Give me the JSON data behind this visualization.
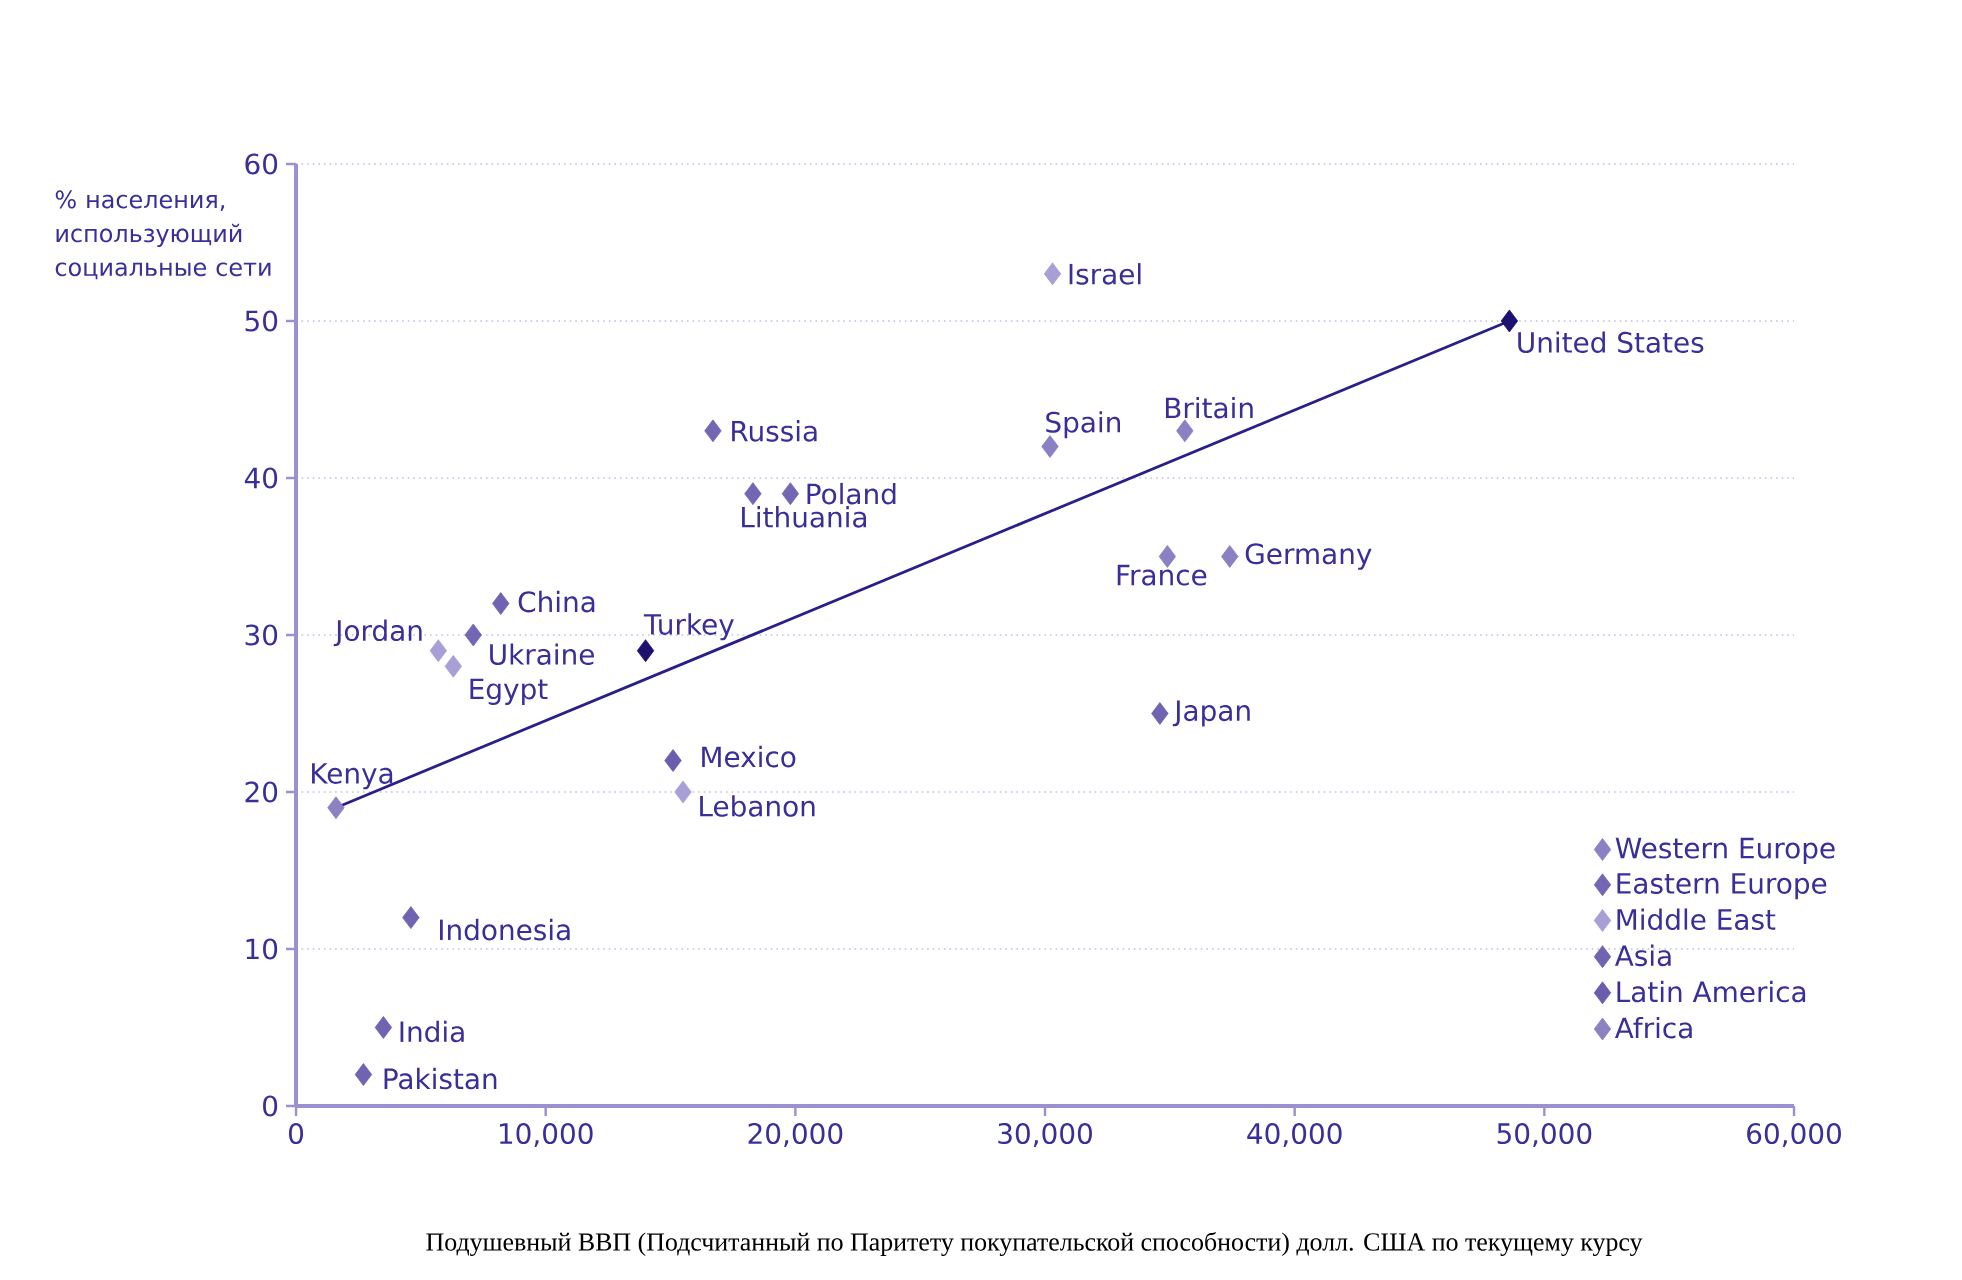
{
  "chart_data": {
    "type": "scatter",
    "xlabel": "Подушевный ВВП (Подсчитанный по Паритету покупательской способности) долл. США по текущему курсу",
    "ylabel": "% населения, использующий социальные сети",
    "xlim": [
      0,
      60000
    ],
    "ylim": [
      0,
      60
    ],
    "xticks": [
      0,
      {
        "value": 10000,
        "label": "10,000"
      },
      {
        "value": 20000,
        "label": "20,000"
      },
      {
        "value": 30000,
        "label": "30,000"
      },
      {
        "value": 40000,
        "label": "40,000"
      },
      {
        "value": 50000,
        "label": "50,000"
      },
      {
        "value": 60000,
        "label": "60,000"
      }
    ],
    "yticks": [
      0,
      10,
      20,
      30,
      40,
      50,
      60
    ],
    "grid": "y",
    "legend": "bottom right",
    "marker": "diamond",
    "series": [
      {
        "name": "Western Europe",
        "color": "#8a80c4",
        "x": [
          30200,
          35600,
          34900,
          37400
        ],
        "values": [
          42,
          43,
          35,
          35
        ]
      },
      {
        "name": "Eastern Europe",
        "color": "#7367b5",
        "x": [
          16700,
          18300,
          19800,
          7100
        ],
        "values": [
          43,
          39,
          39,
          30
        ]
      },
      {
        "name": "Middle East",
        "color": "#a89fd6",
        "x": [
          30300,
          5700,
          6300,
          15500
        ],
        "values": [
          53,
          29,
          28,
          20
        ]
      },
      {
        "name": "Asia",
        "color": "#6f63b2",
        "x": [
          8200,
          4600,
          3500,
          2700,
          34600
        ],
        "values": [
          32,
          12,
          5,
          2,
          25
        ]
      },
      {
        "name": "Latin America",
        "color": "#6a5dae",
        "x": [
          15100
        ],
        "values": [
          22
        ]
      },
      {
        "name": "Africa",
        "color": "#8c82c2",
        "x": [
          1600
        ],
        "values": [
          19
        ]
      },
      {
        "color": "#1c1070",
        "x": [
          14000,
          48600
        ],
        "values": [
          29,
          50
        ]
      },
      {
        "type": "line",
        "marker": "none",
        "color": "#2a1f8a",
        "line_style": "solid",
        "x": [
          1600,
          48600
        ],
        "values": [
          19,
          50
        ]
      }
    ],
    "annotations": [
      {
        "text": "Israel",
        "x": 30300,
        "y": 53
      },
      {
        "text": "United States",
        "x": 48600,
        "y": 50
      },
      {
        "text": "Spain",
        "x": 30200,
        "y": 42
      },
      {
        "text": "Britain",
        "x": 35600,
        "y": 43
      },
      {
        "text": "France",
        "x": 34900,
        "y": 35
      },
      {
        "text": "Germany",
        "x": 37400,
        "y": 35
      },
      {
        "text": "Japan",
        "x": 34600,
        "y": 25
      },
      {
        "text": "Russia",
        "x": 16700,
        "y": 43
      },
      {
        "text": "Lithuania",
        "x": 18300,
        "y": 39
      },
      {
        "text": "Poland",
        "x": 19800,
        "y": 39
      },
      {
        "text": "China",
        "x": 8200,
        "y": 32
      },
      {
        "text": "Ukraine",
        "x": 7100,
        "y": 30
      },
      {
        "text": "Jordan",
        "x": 5700,
        "y": 29
      },
      {
        "text": "Egypt",
        "x": 6300,
        "y": 28
      },
      {
        "text": "Turkey",
        "x": 14000,
        "y": 29
      },
      {
        "text": "Mexico",
        "x": 15100,
        "y": 22
      },
      {
        "text": "Lebanon",
        "x": 15500,
        "y": 20
      },
      {
        "text": "Kenya",
        "x": 1600,
        "y": 19
      },
      {
        "text": "Indonesia",
        "x": 4600,
        "y": 12
      },
      {
        "text": "India",
        "x": 3500,
        "y": 5
      },
      {
        "text": "Pakistan",
        "x": 2700,
        "y": 2
      }
    ]
  }
}
